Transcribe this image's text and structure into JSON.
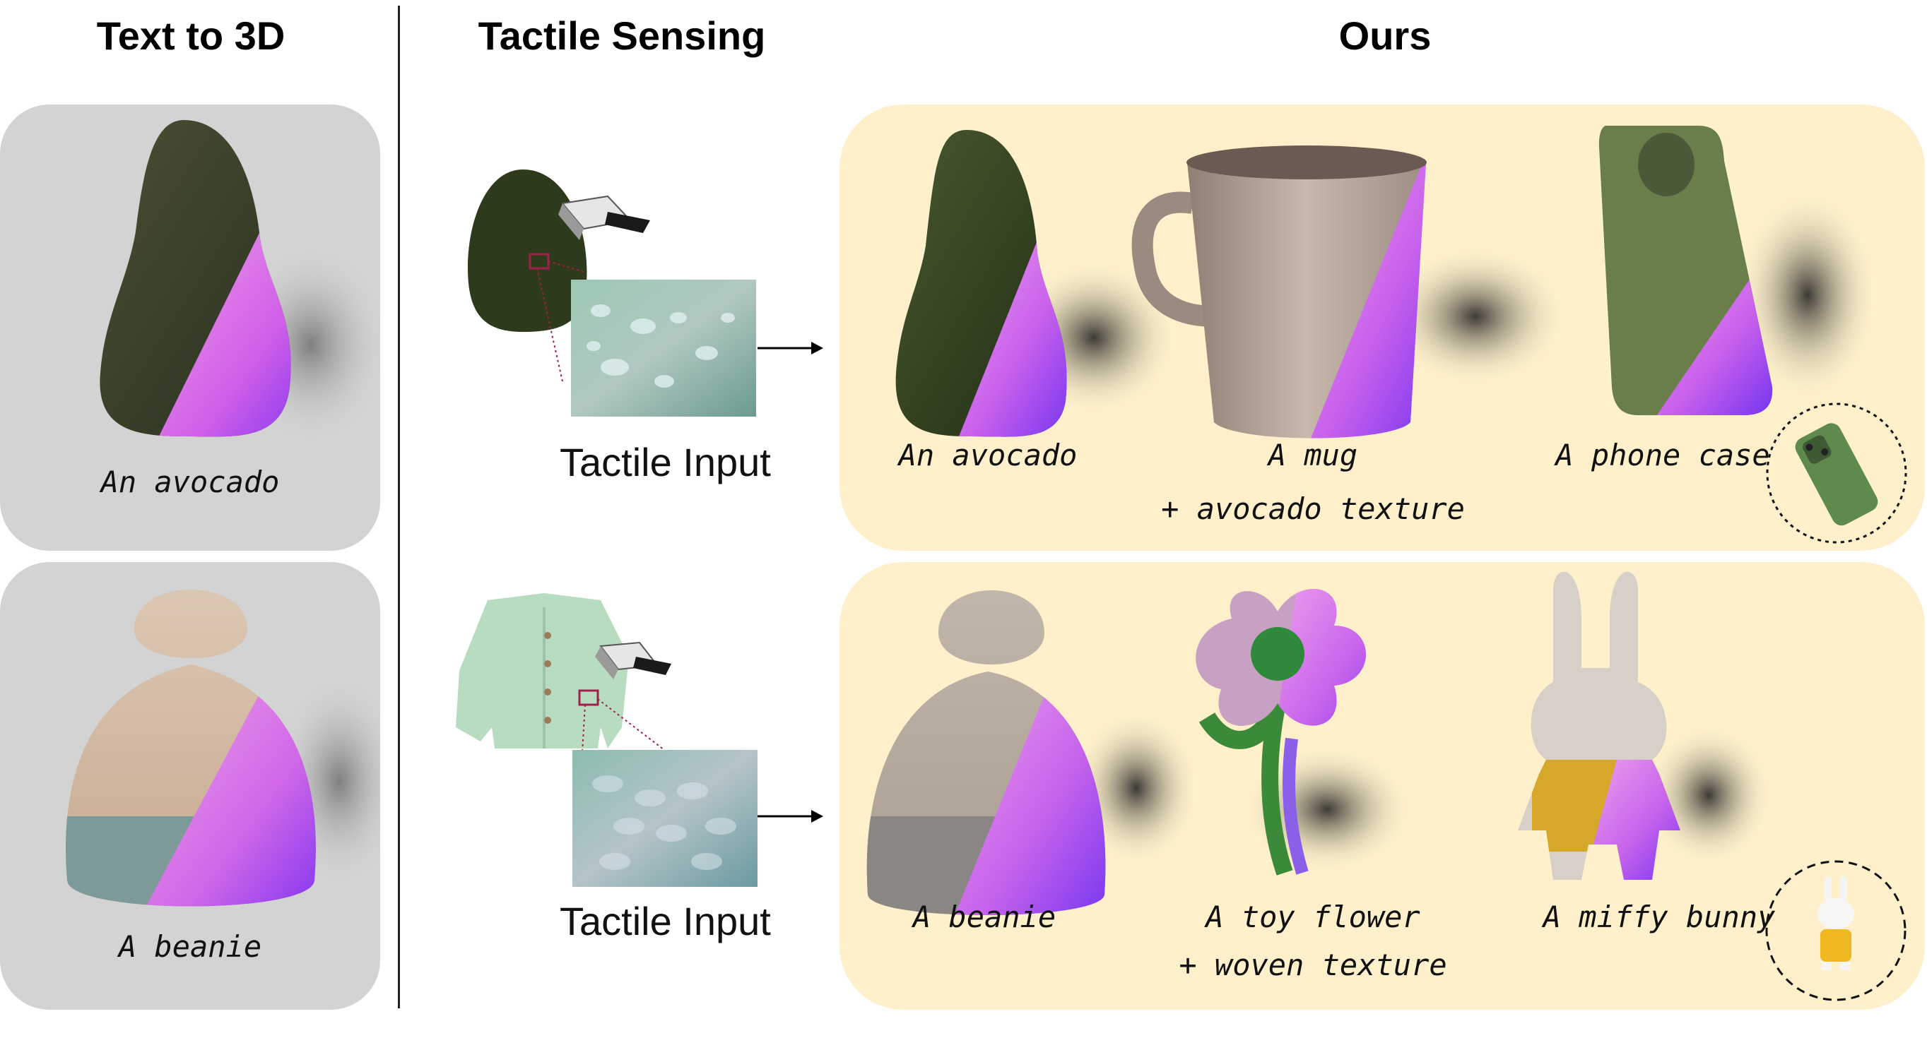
{
  "headers": {
    "text_to_3d": "Text to 3D",
    "tactile_sensing": "Tactile Sensing",
    "ours": "Ours"
  },
  "text_to_3d": {
    "top_caption": "An avocado",
    "bottom_caption": "A beanie"
  },
  "tactile": {
    "top_label": "Tactile Input",
    "bottom_label": "Tactile Input"
  },
  "ours": {
    "row1": {
      "avocado": "An avocado",
      "mug": "A mug",
      "mug_sub": "+ avocado texture",
      "phone": "A phone case"
    },
    "row2": {
      "beanie": "A beanie",
      "flower": "A toy flower",
      "flower_sub": "+ woven texture",
      "bunny": "A miffy bunny"
    }
  },
  "colors": {
    "gray_panel": "#d4d3d4",
    "yellow_panel": "#fdf0cb",
    "avocado_green": "#3c4a2c",
    "normal_pink": "#d070e8",
    "normal_purple": "#8a40f0",
    "marker_red": "#a0204a"
  }
}
